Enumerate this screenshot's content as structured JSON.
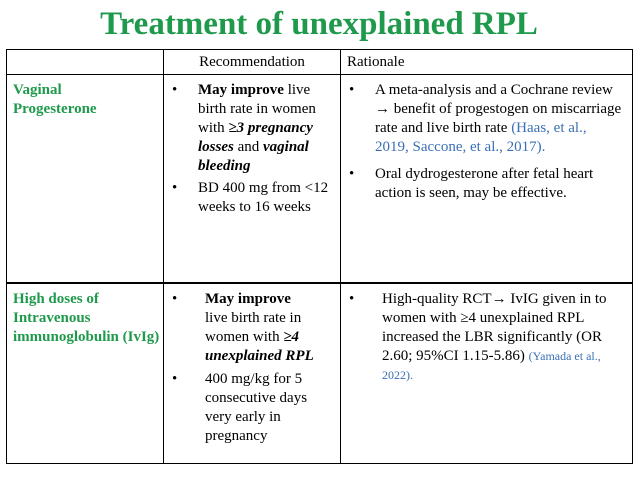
{
  "title": "Treatment of unexplained RPL",
  "header": {
    "col1": "",
    "col2": "Recommendation",
    "col3": "Rationale"
  },
  "row1": {
    "label_line1": "Vaginal",
    "label_line2": "Progesterone",
    "rec1": {
      "b1": "May improve",
      "t1": " live birth rate in women with ",
      "b2": "≥3 pregnancy losses",
      "t2": " and ",
      "b3": "vaginal bleeding"
    },
    "rec2": "BD 400 mg from <12 weeks to 16 weeks",
    "rat1": {
      "text": "A meta-analysis and a Cochrane review → benefit of progestogen on miscarriage rate and live birth rate ",
      "cite": "(Haas, et al., 2019, Saccone, et al., 2017)."
    },
    "rat2": "Oral dydrogesterone after fetal heart action is seen, may be effective."
  },
  "row2": {
    "label": "High doses of Intravenous immunoglobulin (IvIg)",
    "rec1": {
      "b1": "May improve",
      "t1": "live birth rate in women with ",
      "b2": "≥4 unexplained RPL"
    },
    "rec2": "400 mg/kg for 5 consecutive days very early in pregnancy",
    "rat1": {
      "text": "High-quality RCT→ IvIG given in to women with ≥4 unexplained RPL increased the LBR significantly (OR 2.60; 95%CI 1.15-5.86) ",
      "cite": "(Yamada et al., 2022)."
    }
  },
  "bullet": "•"
}
